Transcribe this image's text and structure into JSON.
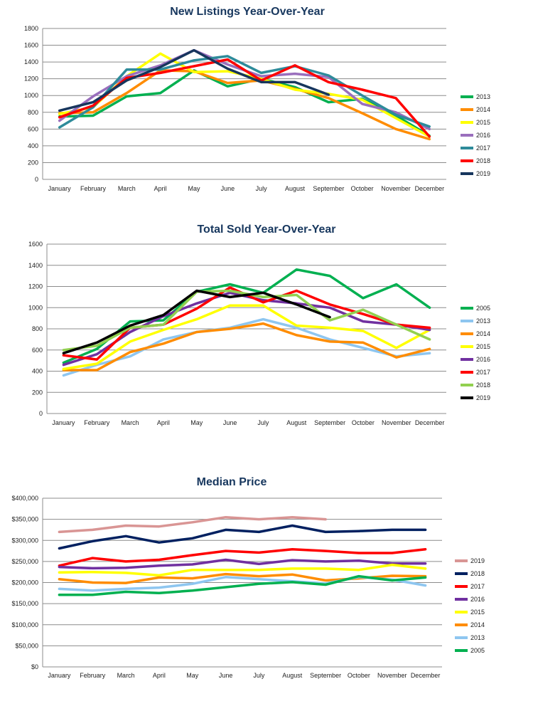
{
  "chart_data": [
    {
      "id": "listings",
      "type": "line",
      "title": "New Listings Year-Over-Year",
      "categories": [
        "January",
        "February",
        "March",
        "April",
        "May",
        "June",
        "July",
        "August",
        "September",
        "October",
        "November",
        "December"
      ],
      "ylim": [
        0,
        1800
      ],
      "yticks": [
        0,
        200,
        400,
        600,
        800,
        1000,
        1200,
        1400,
        1600,
        1800
      ],
      "ytick_labels": [
        "0",
        "200",
        "400",
        "600",
        "800",
        "1000",
        "1200",
        "1400",
        "1600",
        "1800"
      ],
      "grid": true,
      "legend_position": "right",
      "series": [
        {
          "name": "2013",
          "color": "#00b050",
          "values": [
            750,
            760,
            990,
            1030,
            1300,
            1110,
            1200,
            1100,
            920,
            960,
            760,
            520
          ]
        },
        {
          "name": "2014",
          "color": "#ff8c00",
          "values": [
            790,
            800,
            1030,
            1300,
            1290,
            1150,
            1180,
            1080,
            970,
            790,
            600,
            480
          ]
        },
        {
          "name": "2015",
          "color": "#ffff00",
          "values": [
            780,
            860,
            1230,
            1500,
            1280,
            1290,
            1200,
            1070,
            1020,
            950,
            730,
            510
          ]
        },
        {
          "name": "2016",
          "color": "#9a6fbd",
          "values": [
            700,
            990,
            1230,
            1360,
            1540,
            1370,
            1230,
            1260,
            1220,
            900,
            800,
            600
          ]
        },
        {
          "name": "2017",
          "color": "#2e8b9a",
          "values": [
            620,
            860,
            1310,
            1310,
            1420,
            1470,
            1270,
            1350,
            1240,
            1000,
            770,
            630
          ]
        },
        {
          "name": "2018",
          "color": "#ff0000",
          "values": [
            740,
            880,
            1210,
            1270,
            1350,
            1430,
            1180,
            1360,
            1160,
            1070,
            970,
            510
          ]
        },
        {
          "name": "2019",
          "color": "#17365d",
          "values": [
            820,
            920,
            1180,
            1340,
            1540,
            1320,
            1160,
            1160,
            1010,
            null,
            null,
            null
          ]
        }
      ]
    },
    {
      "id": "sold",
      "type": "line",
      "title": "Total Sold Year-Over-Year",
      "categories": [
        "January",
        "February",
        "March",
        "April",
        "May",
        "June",
        "July",
        "August",
        "September",
        "October",
        "November",
        "December"
      ],
      "ylim": [
        0,
        1600
      ],
      "yticks": [
        0,
        200,
        400,
        600,
        800,
        1000,
        1200,
        1400,
        1600
      ],
      "ytick_labels": [
        "0",
        "200",
        "400",
        "600",
        "800",
        "1000",
        "1200",
        "1400",
        "1600"
      ],
      "grid": true,
      "legend_position": "right",
      "series": [
        {
          "name": "2005",
          "color": "#00b050",
          "values": [
            480,
            610,
            870,
            880,
            1150,
            1220,
            1140,
            1360,
            1300,
            1090,
            1220,
            1000
          ]
        },
        {
          "name": "2013",
          "color": "#8ec6f0",
          "values": [
            360,
            460,
            540,
            700,
            770,
            810,
            890,
            810,
            700,
            620,
            540,
            570
          ]
        },
        {
          "name": "2014",
          "color": "#ff8c00",
          "values": [
            410,
            410,
            580,
            660,
            770,
            800,
            850,
            740,
            680,
            670,
            530,
            610
          ]
        },
        {
          "name": "2015",
          "color": "#ffff00",
          "values": [
            420,
            470,
            680,
            790,
            890,
            1020,
            1020,
            830,
            810,
            780,
            620,
            790
          ]
        },
        {
          "name": "2016",
          "color": "#7030a0",
          "values": [
            460,
            560,
            770,
            920,
            1040,
            1140,
            1070,
            1040,
            1000,
            870,
            840,
            790
          ]
        },
        {
          "name": "2017",
          "color": "#ff0000",
          "values": [
            550,
            510,
            810,
            840,
            990,
            1190,
            1050,
            1160,
            1030,
            940,
            840,
            810
          ]
        },
        {
          "name": "2018",
          "color": "#92d050",
          "values": [
            600,
            640,
            810,
            840,
            1150,
            1160,
            1100,
            1120,
            880,
            980,
            840,
            700
          ]
        },
        {
          "name": "2019",
          "color": "#000000",
          "values": [
            570,
            670,
            830,
            930,
            1160,
            1100,
            1140,
            1030,
            910,
            null,
            null,
            null
          ]
        }
      ]
    },
    {
      "id": "price",
      "type": "line",
      "title": "Median Price",
      "categories": [
        "January",
        "February",
        "March",
        "April",
        "May",
        "June",
        "July",
        "August",
        "September",
        "October",
        "November",
        "December"
      ],
      "ylim": [
        0,
        400000
      ],
      "yticks": [
        0,
        50000,
        100000,
        150000,
        200000,
        250000,
        300000,
        350000,
        400000
      ],
      "ytick_labels": [
        "$0",
        "$50,000",
        "$100,000",
        "$150,000",
        "$200,000",
        "$250,000",
        "$300,000",
        "$350,000",
        "$400,000"
      ],
      "grid": true,
      "legend_position": "right",
      "series": [
        {
          "name": "2019",
          "color": "#d99594",
          "values": [
            320000,
            325000,
            335000,
            333000,
            343000,
            355000,
            350000,
            355000,
            350000,
            null,
            null,
            null
          ]
        },
        {
          "name": "2018",
          "color": "#002060",
          "values": [
            281000,
            298000,
            310000,
            295000,
            305000,
            325000,
            320000,
            335000,
            320000,
            322000,
            325000,
            325000
          ]
        },
        {
          "name": "2017",
          "color": "#ff0000",
          "values": [
            240000,
            258000,
            250000,
            254000,
            265000,
            275000,
            271000,
            279000,
            275000,
            270000,
            270000,
            279000
          ]
        },
        {
          "name": "2016",
          "color": "#7030a0",
          "values": [
            237000,
            234000,
            235000,
            240000,
            243000,
            254000,
            244000,
            253000,
            250000,
            252000,
            245000,
            245000
          ]
        },
        {
          "name": "2015",
          "color": "#ffff00",
          "values": [
            224000,
            225000,
            223000,
            217000,
            230000,
            230000,
            230000,
            233000,
            233000,
            230000,
            242000,
            233000
          ]
        },
        {
          "name": "2014",
          "color": "#ff8c00",
          "values": [
            208000,
            200000,
            199000,
            212000,
            210000,
            220000,
            215000,
            219000,
            205000,
            210000,
            216000,
            215000
          ]
        },
        {
          "name": "2013",
          "color": "#8ec6f0",
          "values": [
            185000,
            181000,
            185000,
            188000,
            197000,
            213000,
            208000,
            203000,
            198000,
            213000,
            207000,
            193000
          ]
        },
        {
          "name": "2005",
          "color": "#00b050",
          "values": [
            171000,
            171000,
            178000,
            175000,
            181000,
            189000,
            197000,
            201000,
            195000,
            215000,
            205000,
            212000
          ]
        }
      ]
    }
  ]
}
